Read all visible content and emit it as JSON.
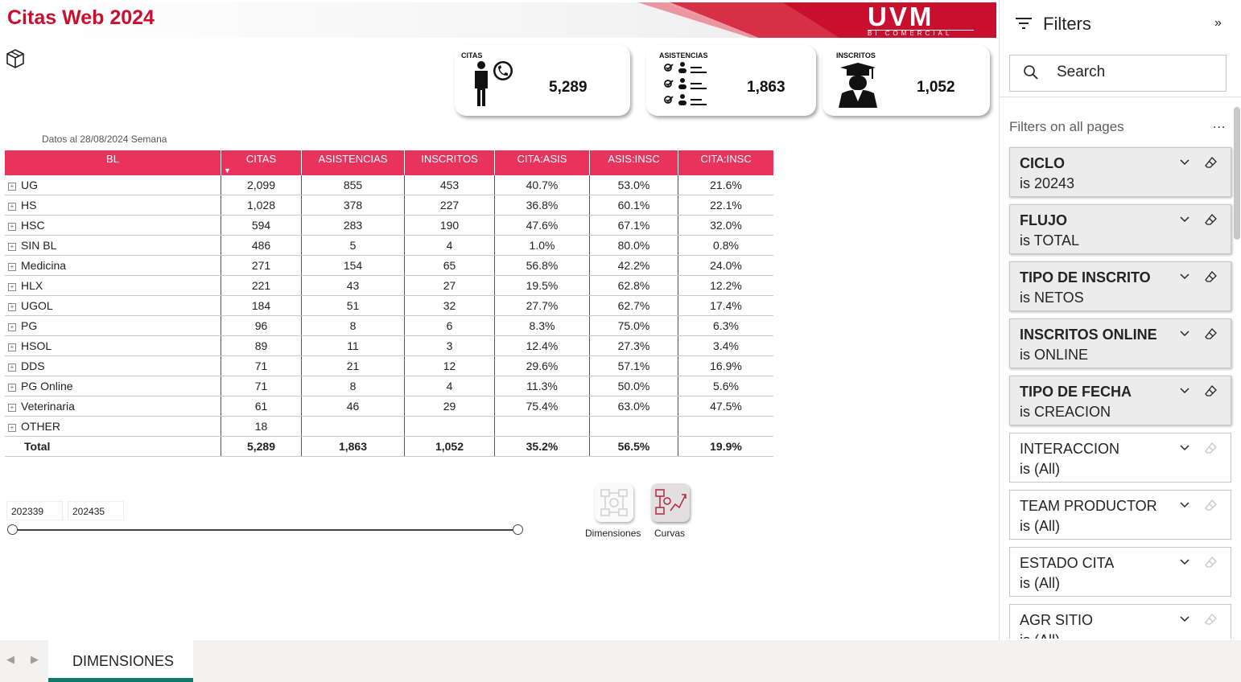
{
  "header": {
    "title": "Citas Web 2024",
    "logo_text": "UVM",
    "logo_subtext": "BI COMERCIAL"
  },
  "kpis": [
    {
      "label": "CITAS",
      "value": "5,289",
      "icon": "person-phone-icon"
    },
    {
      "label": "ASISTENCIAS",
      "value": "1,863",
      "icon": "checklist-people-icon"
    },
    {
      "label": "INSCRITOS",
      "value": "1,052",
      "icon": "graduate-icon"
    }
  ],
  "table": {
    "note": "Datos al 28/08/2024 Semana",
    "columns": [
      "BL",
      "CITAS",
      "ASISTENCIAS",
      "INSCRITOS",
      "CITA:ASIS",
      "ASIS:INSC",
      "CITA:INSC"
    ],
    "rows": [
      [
        "UG",
        "2,099",
        "855",
        "453",
        "40.7%",
        "53.0%",
        "21.6%"
      ],
      [
        "HS",
        "1,028",
        "378",
        "227",
        "36.8%",
        "60.1%",
        "22.1%"
      ],
      [
        "HSC",
        "594",
        "283",
        "190",
        "47.6%",
        "67.1%",
        "32.0%"
      ],
      [
        "SIN BL",
        "486",
        "5",
        "4",
        "1.0%",
        "80.0%",
        "0.8%"
      ],
      [
        "Medicina",
        "271",
        "154",
        "65",
        "56.8%",
        "42.2%",
        "24.0%"
      ],
      [
        "HLX",
        "221",
        "43",
        "27",
        "19.5%",
        "62.8%",
        "12.2%"
      ],
      [
        "UGOL",
        "184",
        "51",
        "32",
        "27.7%",
        "62.7%",
        "17.4%"
      ],
      [
        "PG",
        "96",
        "8",
        "6",
        "8.3%",
        "75.0%",
        "6.3%"
      ],
      [
        "HSOL",
        "89",
        "11",
        "3",
        "12.4%",
        "27.3%",
        "3.4%"
      ],
      [
        "DDS",
        "71",
        "21",
        "12",
        "29.6%",
        "57.1%",
        "16.9%"
      ],
      [
        "PG Online",
        "71",
        "8",
        "4",
        "11.3%",
        "50.0%",
        "5.6%"
      ],
      [
        "Veterinaria",
        "61",
        "46",
        "29",
        "75.4%",
        "63.0%",
        "47.5%"
      ],
      [
        "OTHER",
        "18",
        "",
        "",
        "",
        "",
        ""
      ]
    ],
    "total": [
      "Total",
      "5,289",
      "1,863",
      "1,052",
      "35.2%",
      "56.5%",
      "19.9%"
    ]
  },
  "slicer": {
    "start": "202339",
    "end": "202435"
  },
  "nav": {
    "dimensiones": "Dimensiones",
    "curvas": "Curvas"
  },
  "filters": {
    "title": "Filters",
    "search_placeholder": "Search",
    "section": "Filters on all pages",
    "more": "...",
    "items": [
      {
        "name": "CICLO",
        "value": "is 20243",
        "active": true
      },
      {
        "name": "FLUJO",
        "value": "is TOTAL",
        "active": true
      },
      {
        "name": "TIPO DE INSCRITO",
        "value": "is NETOS",
        "active": true
      },
      {
        "name": "INSCRITOS ONLINE",
        "value": "is ONLINE",
        "active": true
      },
      {
        "name": "TIPO DE FECHA",
        "value": "is CREACION",
        "active": true
      },
      {
        "name": "INTERACCION",
        "value": "is (All)",
        "active": false
      },
      {
        "name": "TEAM PRODUCTOR",
        "value": "is (All)",
        "active": false
      },
      {
        "name": "ESTADO CITA",
        "value": "is (All)",
        "active": false
      },
      {
        "name": "AGR SITIO",
        "value": "is (All)",
        "active": false
      }
    ]
  },
  "tabs": {
    "active": "DIMENSIONES"
  },
  "colors": {
    "accent": "#c8102e",
    "table_header": "#e8345d",
    "tab_underline": "#117865"
  }
}
